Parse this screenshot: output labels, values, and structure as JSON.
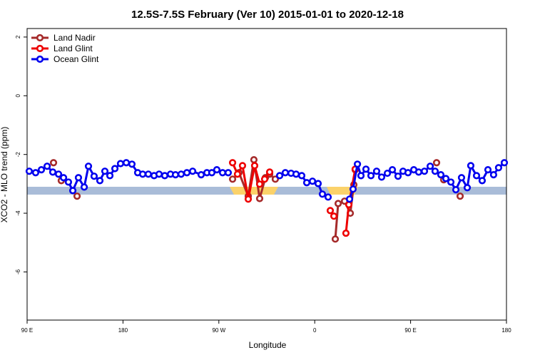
{
  "chart_data": {
    "type": "line",
    "title": "12.5S-7.5S February (Ver 10)   2015-01-01 to 2020-12-18",
    "x_label": "Longitude",
    "y_label": "XCO2 - MLO trend (ppm)",
    "xlim": [
      90,
      540
    ],
    "xticks": [
      {
        "value": 90,
        "label": "90 E"
      },
      {
        "value": 180,
        "label": "180"
      },
      {
        "value": 270,
        "label": "90 W"
      },
      {
        "value": 360,
        "label": "0"
      },
      {
        "value": 450,
        "label": "90 E"
      },
      {
        "value": 540,
        "label": "180"
      }
    ],
    "ylim": [
      -7.64,
      2.29
    ],
    "yticks": [
      2,
      0,
      -2,
      -4,
      -6
    ],
    "legend": "top-left",
    "series": [
      {
        "name": "Land Nadir",
        "color": "#a52a2a",
        "x": [
          114.8,
          null,
          122.1,
          null,
          136.9,
          null,
          282.9,
          288.9,
          297.6,
          302.9,
          308.3,
          313.7,
          317.7,
          323.0,
          null,
          379.3,
          382.0,
          388.0,
          393.4,
          396.7,
          398.0,
          null,
          474.4,
          null,
          481.1,
          null,
          496.5
        ],
        "values": [
          -2.28,
          null,
          -2.89,
          null,
          -3.42,
          null,
          -2.84,
          -2.62,
          -3.42,
          -2.18,
          -3.5,
          -2.79,
          -2.67,
          -2.84,
          null,
          -4.88,
          -3.67,
          -3.59,
          -4.0,
          -3.03,
          -2.52,
          null,
          -2.28,
          null,
          -2.86,
          null,
          -3.42
        ]
      },
      {
        "name": "Land Glint",
        "color": "#ee0000",
        "x": [
          282.9,
          287.5,
          292.2,
          297.6,
          303.6,
          308.3,
          313.0,
          317.7,
          null,
          374.6,
          378.0,
          null,
          389.3,
          392.0,
          398.0
        ],
        "values": [
          -2.28,
          -2.67,
          -2.38,
          -3.52,
          -2.38,
          -3.01,
          -2.84,
          -2.6,
          null,
          -3.91,
          -4.1,
          null,
          -4.68,
          -3.71,
          -2.5
        ]
      },
      {
        "name": "Ocean Glint",
        "color": "#0000ee",
        "x": [
          92.0,
          98.0,
          103.4,
          108.8,
          114.1,
          119.5,
          124.2,
          128.8,
          132.9,
          138.2,
          143.6,
          147.6,
          152.9,
          158.3,
          163.0,
          167.7,
          172.4,
          177.7,
          183.1,
          188.4,
          193.8,
          198.5,
          203.8,
          209.2,
          213.9,
          219.2,
          224.6,
          229.3,
          234.6,
          240.0,
          245.4,
          253.4,
          258.8,
          263.4,
          268.1,
          273.5,
          278.8,
          null,
          327.1,
          332.4,
          337.8,
          342.5,
          347.8,
          352.5,
          357.9,
          363.2,
          367.2,
          372.6,
          null,
          392.7,
          396.0,
          400.1,
          403.4,
          408.1,
          412.8,
          418.1,
          422.8,
          428.2,
          432.9,
          438.2,
          442.9,
          447.6,
          453.0,
          457.6,
          463.0,
          468.4,
          473.0,
          478.4,
          483.1,
          487.8,
          492.5,
          497.8,
          503.2,
          506.5,
          511.9,
          517.2,
          522.6,
          527.9,
          532.6,
          538.0
        ],
        "values": [
          -2.57,
          -2.62,
          -2.52,
          -2.4,
          -2.6,
          -2.67,
          -2.79,
          -2.94,
          -3.23,
          -2.79,
          -3.11,
          -2.4,
          -2.74,
          -2.89,
          -2.57,
          -2.72,
          -2.48,
          -2.31,
          -2.28,
          -2.33,
          -2.62,
          -2.67,
          -2.67,
          -2.72,
          -2.67,
          -2.72,
          -2.67,
          -2.69,
          -2.67,
          -2.62,
          -2.57,
          -2.69,
          -2.62,
          -2.62,
          -2.52,
          -2.62,
          -2.62,
          null,
          -2.72,
          -2.62,
          -2.64,
          -2.67,
          -2.72,
          -2.96,
          -2.91,
          -2.99,
          -3.35,
          -3.45,
          null,
          -3.52,
          -3.18,
          -2.33,
          -2.72,
          -2.5,
          -2.72,
          -2.57,
          -2.77,
          -2.64,
          -2.52,
          -2.74,
          -2.57,
          -2.62,
          -2.52,
          -2.6,
          -2.57,
          -2.4,
          -2.57,
          -2.69,
          -2.82,
          -2.94,
          -3.2,
          -2.79,
          -3.13,
          -2.38,
          -2.72,
          -2.89,
          -2.52,
          -2.69,
          -2.45,
          -2.28
        ]
      }
    ]
  }
}
